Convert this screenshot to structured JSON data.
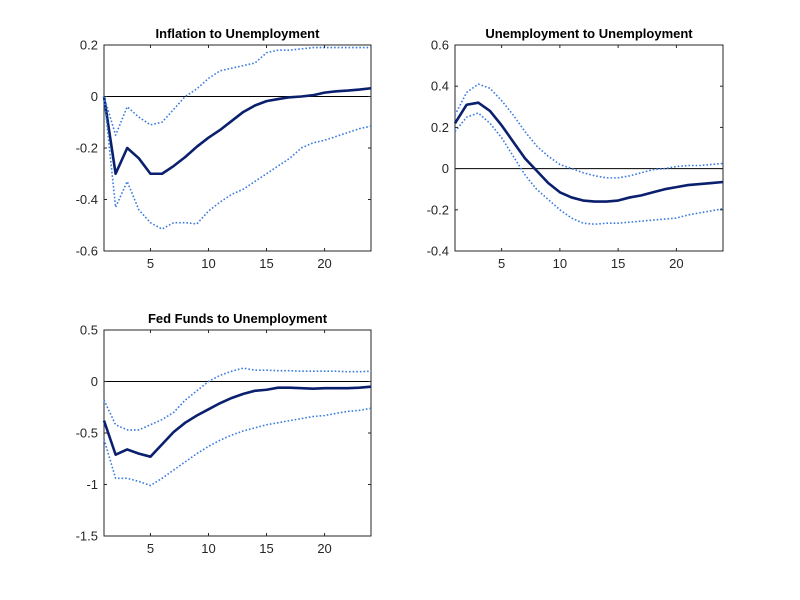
{
  "chart_data": [
    {
      "type": "line",
      "title": "Inflation to Unemployment",
      "xlabel": "",
      "ylabel": "",
      "xlim": [
        1,
        24
      ],
      "ylim": [
        -0.6,
        0.2
      ],
      "xticks": [
        5,
        10,
        15,
        20
      ],
      "yticks": [
        -0.6,
        -0.4,
        -0.2,
        0,
        0.2
      ],
      "ytick_labels": [
        "-0.6",
        "-0.4",
        "-0.2",
        "0",
        "0.2"
      ],
      "grid": false,
      "zero_line": true,
      "x": [
        1,
        2,
        3,
        4,
        5,
        6,
        7,
        8,
        9,
        10,
        11,
        12,
        13,
        14,
        15,
        16,
        17,
        18,
        19,
        20,
        21,
        22,
        23,
        24
      ],
      "series": [
        {
          "role": "estimate",
          "color": "#0a1f6e",
          "style": "solid",
          "values": [
            0,
            -0.3,
            -0.2,
            -0.24,
            -0.3,
            -0.3,
            -0.27,
            -0.235,
            -0.195,
            -0.16,
            -0.13,
            -0.095,
            -0.06,
            -0.035,
            -0.018,
            -0.01,
            -0.003,
            0,
            0.005,
            0.015,
            0.02,
            0.023,
            0.027,
            0.032
          ]
        },
        {
          "role": "upper",
          "color": "#3a7be0",
          "style": "dotted",
          "values": [
            0,
            -0.15,
            -0.04,
            -0.08,
            -0.11,
            -0.1,
            -0.05,
            0.0,
            0.03,
            0.07,
            0.1,
            0.11,
            0.12,
            0.13,
            0.17,
            0.18,
            0.18,
            0.185,
            0.19,
            0.19,
            0.19,
            0.19,
            0.19,
            0.19
          ]
        },
        {
          "role": "lower",
          "color": "#3a7be0",
          "style": "dotted",
          "values": [
            0,
            -0.43,
            -0.33,
            -0.44,
            -0.49,
            -0.515,
            -0.49,
            -0.49,
            -0.495,
            -0.445,
            -0.41,
            -0.38,
            -0.36,
            -0.33,
            -0.3,
            -0.27,
            -0.24,
            -0.2,
            -0.18,
            -0.17,
            -0.155,
            -0.14,
            -0.125,
            -0.115
          ]
        }
      ]
    },
    {
      "type": "line",
      "title": "Unemployment to Unemployment",
      "xlabel": "",
      "ylabel": "",
      "xlim": [
        1,
        24
      ],
      "ylim": [
        -0.4,
        0.6
      ],
      "xticks": [
        5,
        10,
        15,
        20
      ],
      "yticks": [
        -0.4,
        -0.2,
        0,
        0.2,
        0.4,
        0.6
      ],
      "ytick_labels": [
        "-0.4",
        "-0.2",
        "0",
        "0.2",
        "0.4",
        "0.6"
      ],
      "grid": false,
      "zero_line": true,
      "x": [
        1,
        2,
        3,
        4,
        5,
        6,
        7,
        8,
        9,
        10,
        11,
        12,
        13,
        14,
        15,
        16,
        17,
        18,
        19,
        20,
        21,
        22,
        23,
        24
      ],
      "series": [
        {
          "role": "estimate",
          "color": "#0a1f6e",
          "style": "solid",
          "values": [
            0.22,
            0.31,
            0.32,
            0.28,
            0.21,
            0.13,
            0.05,
            -0.01,
            -0.07,
            -0.115,
            -0.14,
            -0.155,
            -0.16,
            -0.16,
            -0.155,
            -0.14,
            -0.13,
            -0.115,
            -0.1,
            -0.09,
            -0.08,
            -0.075,
            -0.07,
            -0.065
          ]
        },
        {
          "role": "upper",
          "color": "#3a7be0",
          "style": "dotted",
          "values": [
            0.26,
            0.37,
            0.41,
            0.39,
            0.33,
            0.26,
            0.18,
            0.11,
            0.06,
            0.02,
            0.0,
            -0.02,
            -0.035,
            -0.045,
            -0.045,
            -0.035,
            -0.02,
            -0.005,
            0.0,
            0.01,
            0.015,
            0.015,
            0.02,
            0.025
          ]
        },
        {
          "role": "lower",
          "color": "#3a7be0",
          "style": "dotted",
          "values": [
            0.18,
            0.25,
            0.27,
            0.22,
            0.15,
            0.06,
            -0.03,
            -0.1,
            -0.15,
            -0.2,
            -0.24,
            -0.265,
            -0.27,
            -0.265,
            -0.265,
            -0.26,
            -0.255,
            -0.25,
            -0.245,
            -0.24,
            -0.225,
            -0.215,
            -0.205,
            -0.195
          ]
        }
      ]
    },
    {
      "type": "line",
      "title": "Fed Funds to Unemployment",
      "xlabel": "",
      "ylabel": "",
      "xlim": [
        1,
        24
      ],
      "ylim": [
        -1.5,
        0.5
      ],
      "xticks": [
        5,
        10,
        15,
        20
      ],
      "yticks": [
        -1.5,
        -1,
        -0.5,
        0,
        0.5
      ],
      "ytick_labels": [
        "-1.5",
        "-1",
        "-0.5",
        "0",
        "0.5"
      ],
      "grid": false,
      "zero_line": true,
      "x": [
        1,
        2,
        3,
        4,
        5,
        6,
        7,
        8,
        9,
        10,
        11,
        12,
        13,
        14,
        15,
        16,
        17,
        18,
        19,
        20,
        21,
        22,
        23,
        24
      ],
      "series": [
        {
          "role": "estimate",
          "color": "#0a1f6e",
          "style": "solid",
          "values": [
            -0.38,
            -0.71,
            -0.66,
            -0.7,
            -0.73,
            -0.61,
            -0.49,
            -0.4,
            -0.33,
            -0.27,
            -0.21,
            -0.16,
            -0.12,
            -0.09,
            -0.08,
            -0.06,
            -0.06,
            -0.065,
            -0.07,
            -0.065,
            -0.065,
            -0.065,
            -0.06,
            -0.05
          ]
        },
        {
          "role": "upper",
          "color": "#3a7be0",
          "style": "dotted",
          "values": [
            -0.18,
            -0.42,
            -0.47,
            -0.47,
            -0.42,
            -0.37,
            -0.3,
            -0.18,
            -0.09,
            0.0,
            0.06,
            0.1,
            0.13,
            0.11,
            0.11,
            0.105,
            0.105,
            0.1,
            0.1,
            0.1,
            0.1,
            0.095,
            0.095,
            0.1
          ]
        },
        {
          "role": "lower",
          "color": "#3a7be0",
          "style": "dotted",
          "values": [
            -0.56,
            -0.94,
            -0.94,
            -0.97,
            -1.01,
            -0.94,
            -0.86,
            -0.78,
            -0.7,
            -0.63,
            -0.57,
            -0.52,
            -0.48,
            -0.45,
            -0.42,
            -0.4,
            -0.38,
            -0.36,
            -0.34,
            -0.33,
            -0.31,
            -0.29,
            -0.28,
            -0.26
          ]
        }
      ]
    }
  ],
  "style": {
    "axis_color": "#262626",
    "zero_line_color": "#000000",
    "background": "#ffffff"
  }
}
